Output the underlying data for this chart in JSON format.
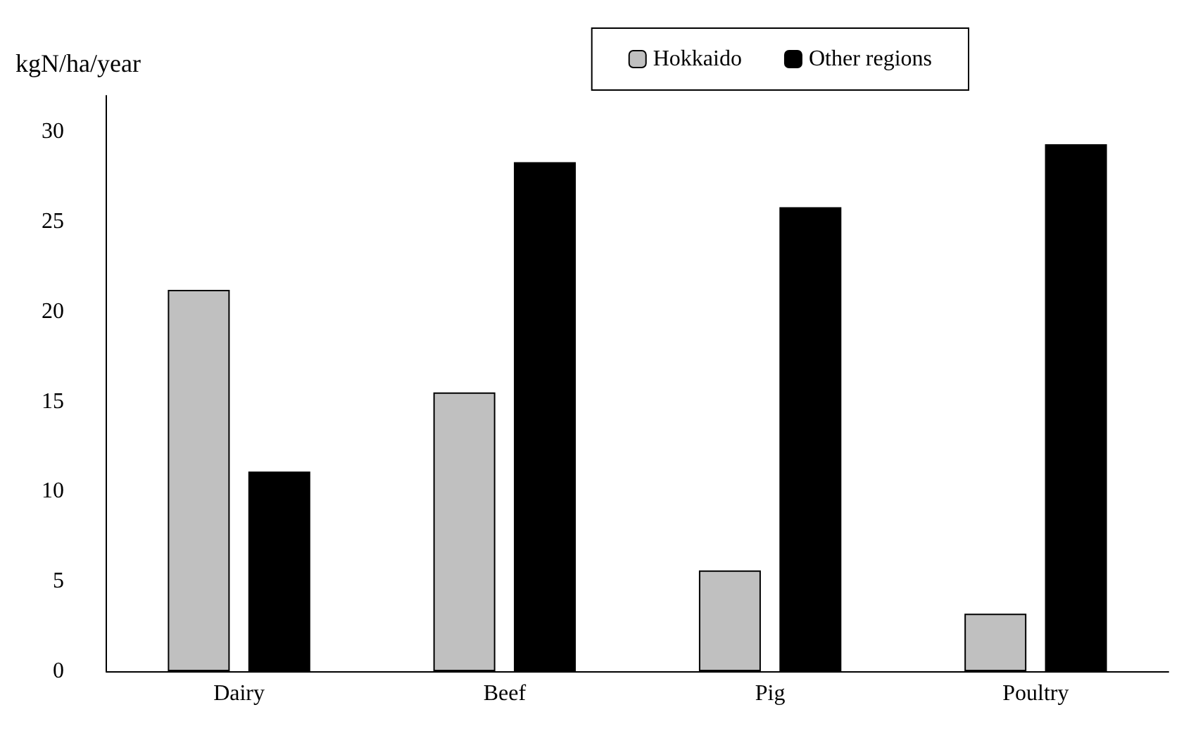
{
  "chart_data": {
    "type": "bar",
    "ylabel": "kgN/ha/year",
    "categories": [
      "Dairy",
      "Beef",
      "Pig",
      "Poultry"
    ],
    "series": [
      {
        "name": "Hokkaido",
        "color": "#c0c0c0",
        "values": [
          21.2,
          15.5,
          5.6,
          3.2
        ]
      },
      {
        "name": "Other regions",
        "color": "#000000",
        "values": [
          11.1,
          28.3,
          25.8,
          29.3
        ]
      }
    ],
    "ylim": [
      0,
      32
    ],
    "yticks": [
      0,
      5,
      10,
      15,
      20,
      25,
      30
    ],
    "grid": false,
    "legend": "top right"
  }
}
